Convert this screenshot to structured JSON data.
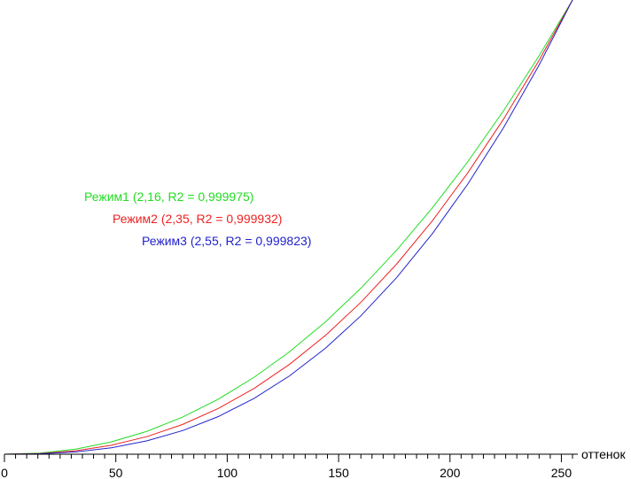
{
  "chart_data": {
    "type": "line",
    "xlabel": "оттенок",
    "ylabel": "",
    "xlim": [
      0,
      255
    ],
    "ylim": [
      0,
      1
    ],
    "x_ticks": [
      0,
      50,
      100,
      150,
      200,
      250
    ],
    "x_minor_step": 5,
    "grid": false,
    "legend_placement": "center-left",
    "series": [
      {
        "name": "Режим1 (2,16, R2 = 0,999975)",
        "color": "#22dd22",
        "gamma": 2.16
      },
      {
        "name": "Режим2 (2,35, R2 = 0,999932)",
        "color": "#ee2222",
        "gamma": 2.35
      },
      {
        "name": "Режим3 (2,55, R2 = 0,999823)",
        "color": "#2222cc",
        "gamma": 2.55
      }
    ],
    "x": [
      0,
      16,
      32,
      48,
      64,
      80,
      96,
      112,
      128,
      144,
      160,
      176,
      192,
      208,
      224,
      240,
      255
    ]
  }
}
